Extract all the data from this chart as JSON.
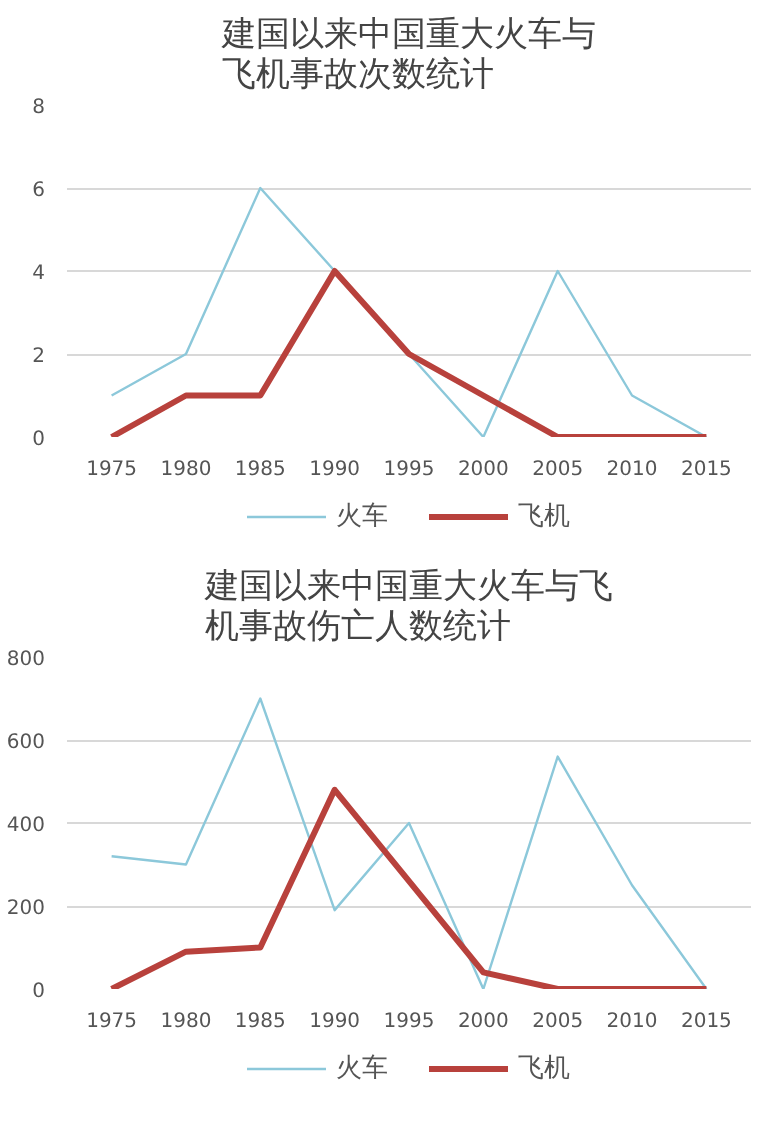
{
  "chart_data": [
    {
      "type": "line",
      "title": "建国以来中国重大火车与飞机事故次数统计",
      "categories": [
        "1975",
        "1980",
        "1985",
        "1990",
        "1995",
        "2000",
        "2005",
        "2010",
        "2015"
      ],
      "ylim": [
        0,
        8
      ],
      "yticks": [
        0,
        2,
        4,
        6,
        8
      ],
      "grid": "y",
      "legend": "bottom",
      "marker": "none",
      "series": [
        {
          "name": "火车",
          "color": "#8cc8da",
          "values": [
            1,
            2,
            6,
            4,
            2,
            0,
            4,
            1,
            0
          ]
        },
        {
          "name": "飞机",
          "color": "#b8413c",
          "values": [
            0,
            1,
            1,
            4,
            2,
            1,
            0,
            0,
            0
          ]
        }
      ]
    },
    {
      "type": "line",
      "title": "建国以来中国重大火车与飞机事故伤亡人数统计",
      "categories": [
        "1975",
        "1980",
        "1985",
        "1990",
        "1995",
        "2000",
        "2005",
        "2010",
        "2015"
      ],
      "ylim": [
        0,
        800
      ],
      "yticks": [
        0,
        200,
        400,
        600,
        800
      ],
      "grid": "y",
      "legend": "bottom",
      "marker": "none",
      "series": [
        {
          "name": "火车",
          "color": "#8cc8da",
          "values": [
            320,
            300,
            700,
            190,
            400,
            0,
            560,
            250,
            0
          ]
        },
        {
          "name": "飞机",
          "color": "#b8413c",
          "values": [
            0,
            90,
            100,
            480,
            260,
            40,
            0,
            0,
            0
          ]
        }
      ]
    }
  ]
}
